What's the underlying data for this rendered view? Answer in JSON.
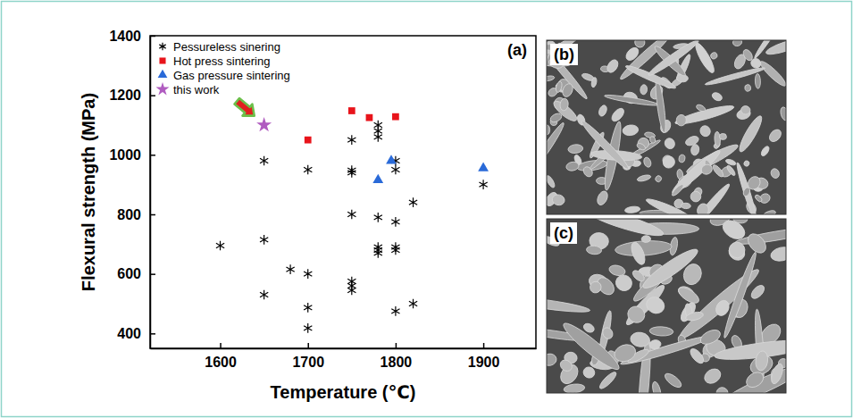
{
  "chart_data": {
    "type": "scatter",
    "panel_label": "(a)",
    "x_label": "Temperature (℃)",
    "y_label": "Flexural strength (MPa)",
    "xlim": [
      1520,
      1960
    ],
    "xticks": [
      1600,
      1700,
      1800,
      1900
    ],
    "ylim": [
      350,
      1400
    ],
    "yticks": [
      400,
      600,
      800,
      1000,
      1200,
      1400
    ],
    "grid": false,
    "legend": "upper left",
    "series": [
      {
        "name": "Pessureless sinering",
        "color": "#000000",
        "marker": "asterisk",
        "x": [
          1600,
          1650,
          1650,
          1650,
          1680,
          1700,
          1700,
          1700,
          1700,
          1750,
          1750,
          1750,
          1750,
          1750,
          1750,
          1750,
          1780,
          1780,
          1780,
          1780,
          1780,
          1780,
          1780,
          1800,
          1800,
          1800,
          1800,
          1800,
          1800,
          1820,
          1820,
          1900
        ],
        "values": [
          695,
          980,
          715,
          530,
          615,
          950,
          600,
          487,
          418,
          1050,
          948,
          940,
          800,
          575,
          560,
          545,
          1100,
          1080,
          1060,
          790,
          690,
          680,
          670,
          980,
          950,
          775,
          690,
          680,
          475,
          840,
          500,
          900
        ]
      },
      {
        "name": "Hot press sintering",
        "color": "#e8141b",
        "marker": "square",
        "x": [
          1700,
          1750,
          1770,
          1800
        ],
        "values": [
          1050,
          1148,
          1125,
          1128
        ]
      },
      {
        "name": "Gas pressure sintering",
        "color": "#2a6ad8",
        "marker": "triangle",
        "x": [
          1780,
          1795,
          1900
        ],
        "values": [
          915,
          980,
          955
        ]
      },
      {
        "name": "this work",
        "color": "#b05cc0",
        "marker": "star",
        "x": [
          1650
        ],
        "values": [
          1100
        ]
      }
    ]
  },
  "panels": [
    {
      "label": "(b)"
    },
    {
      "label": "(c)"
    }
  ]
}
